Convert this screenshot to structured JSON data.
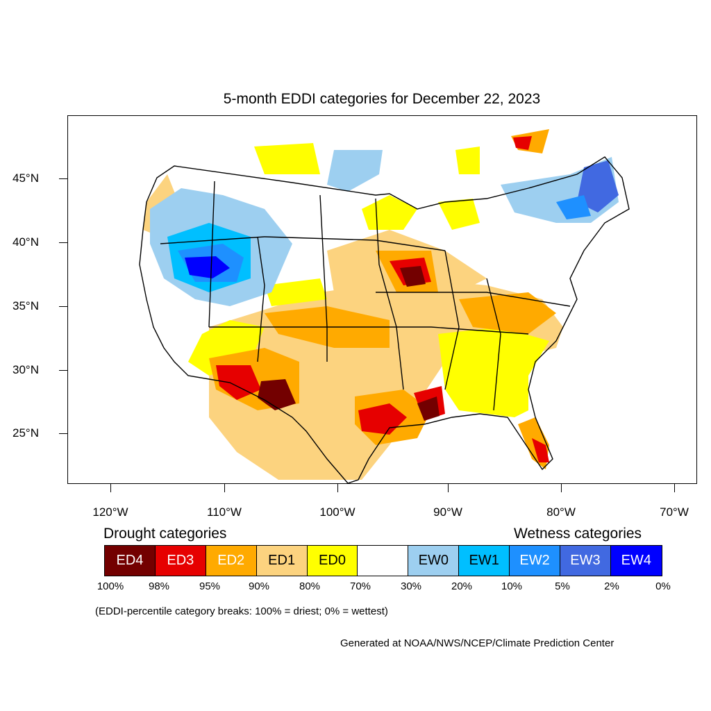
{
  "title": "5-month EDDI categories for December 22, 2023",
  "latitude_labels": [
    "45°N",
    "40°N",
    "35°N",
    "30°N",
    "25°N"
  ],
  "longitude_labels": [
    "120°W",
    "110°W",
    "100°W",
    "90°W",
    "80°W",
    "70°W"
  ],
  "legend": {
    "drought_heading": "Drought categories",
    "wetness_heading": "Wetness categories",
    "categories": [
      {
        "label": "ED4",
        "color": "#730000",
        "text_color": "#ffffff"
      },
      {
        "label": "ED3",
        "color": "#e60000",
        "text_color": "#ffffff"
      },
      {
        "label": "ED2",
        "color": "#ffaa00",
        "text_color": "#ffffff"
      },
      {
        "label": "ED1",
        "color": "#fcd37f",
        "text_color": "#000000"
      },
      {
        "label": "ED0",
        "color": "#ffff00",
        "text_color": "#000000"
      },
      {
        "label": "",
        "color": "#ffffff",
        "text_color": "#000000"
      },
      {
        "label": "EW0",
        "color": "#9dcff0",
        "text_color": "#000000"
      },
      {
        "label": "EW1",
        "color": "#00bfff",
        "text_color": "#000000"
      },
      {
        "label": "EW2",
        "color": "#1e90ff",
        "text_color": "#ffffff"
      },
      {
        "label": "EW3",
        "color": "#4169e1",
        "text_color": "#ffffff"
      },
      {
        "label": "EW4",
        "color": "#0000ff",
        "text_color": "#ffffff"
      }
    ],
    "breaks": [
      "100%",
      "98%",
      "95%",
      "90%",
      "80%",
      "70%",
      "30%",
      "20%",
      "10%",
      "5%",
      "2%",
      "0%"
    ]
  },
  "note": "(EDDI-percentile category breaks: 100% = driest; 0% = wettest)",
  "credit": "Generated at NOAA/NWS/NCEP/Climate Prediction Center"
}
